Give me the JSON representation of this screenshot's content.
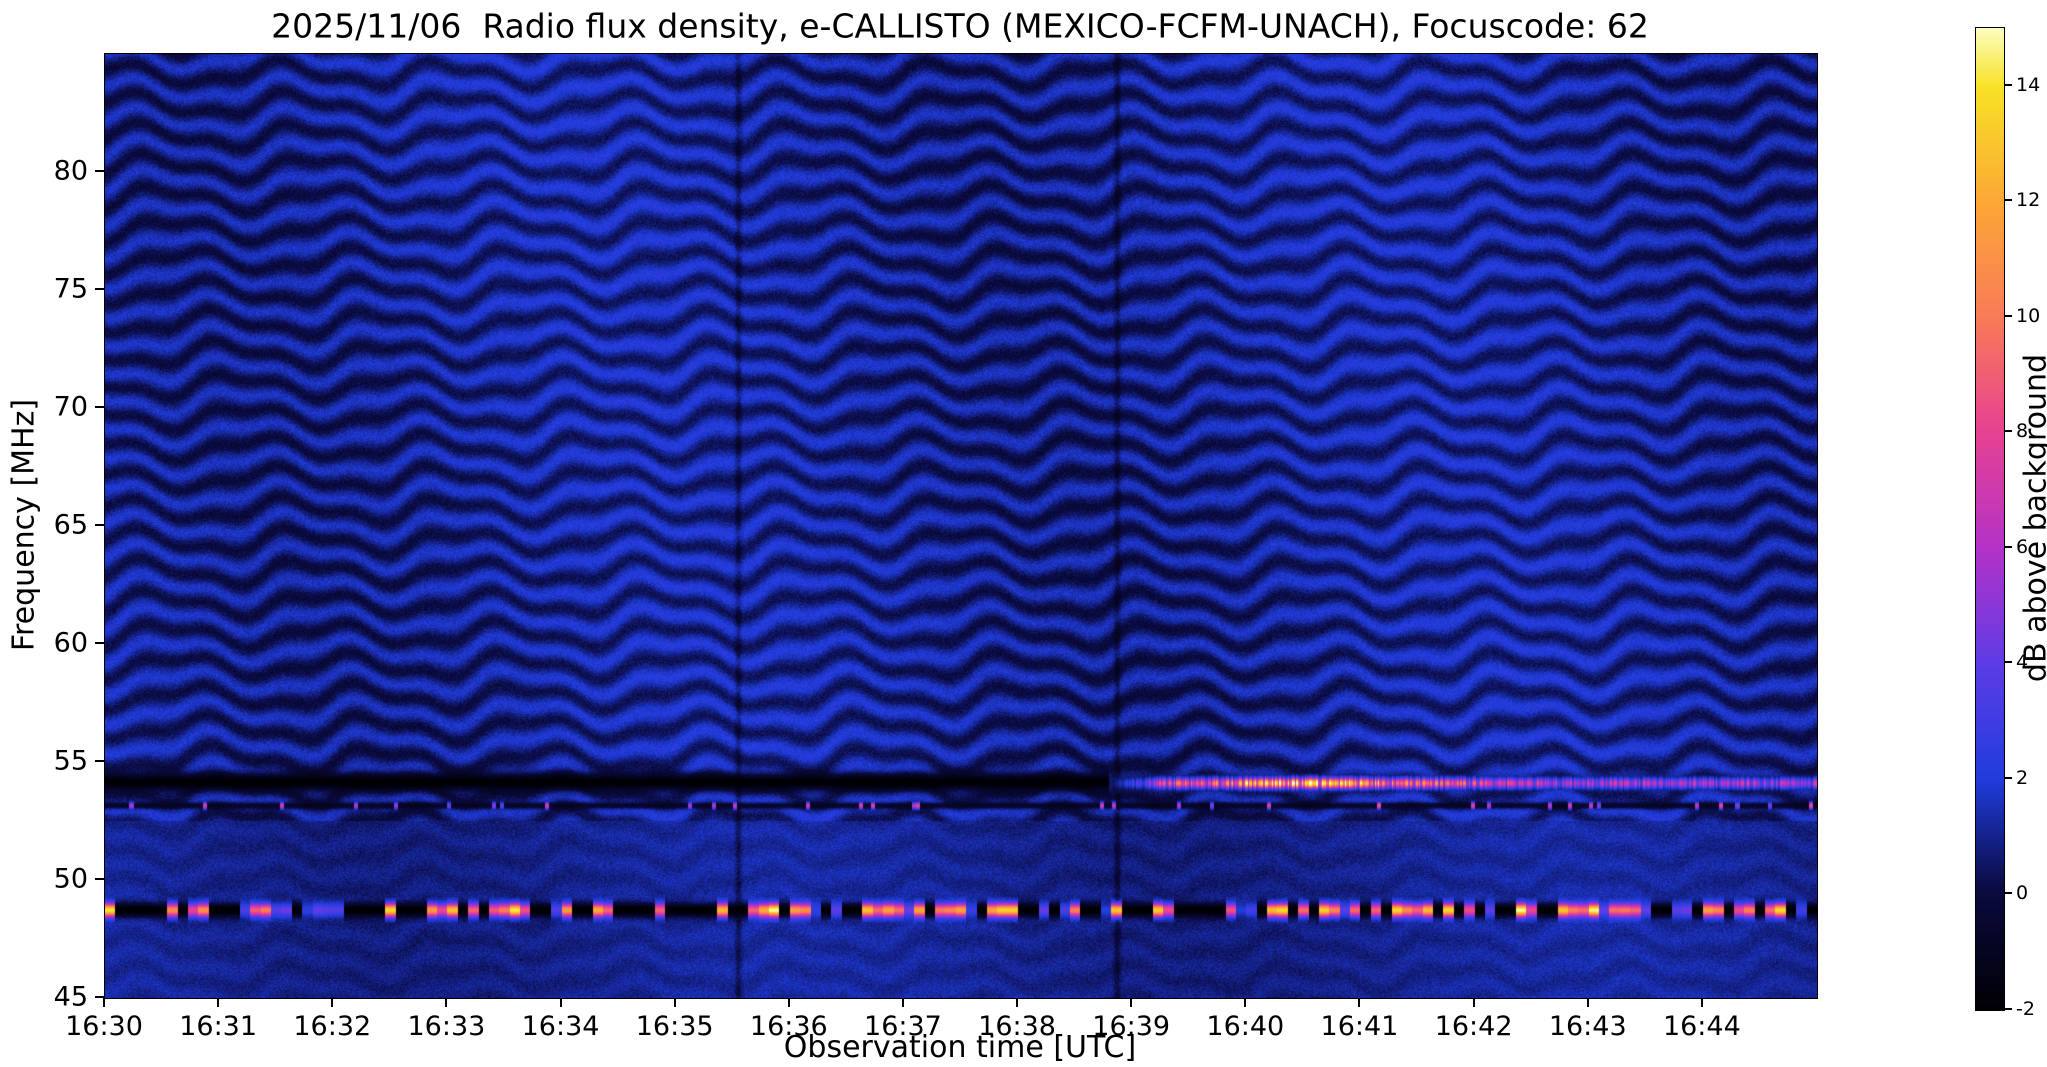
{
  "figure": {
    "background": "#ffffff",
    "text_color": "#000000"
  },
  "chart_data": {
    "type": "heatmap",
    "title": "2025/11/06  Radio flux density, e-CALLISTO (MEXICO-FCFM-UNACH), Focuscode: 62",
    "xlabel": "Observation time [UTC]",
    "ylabel": "Frequency [MHz]",
    "colorbar_label": "dB above background",
    "x_ticks": [
      "16:30",
      "16:31",
      "16:32",
      "16:33",
      "16:34",
      "16:35",
      "16:36",
      "16:37",
      "16:38",
      "16:39",
      "16:40",
      "16:41",
      "16:42",
      "16:43",
      "16:44"
    ],
    "x_range_minutes": [
      0,
      15
    ],
    "y_ticks": [
      45,
      50,
      55,
      60,
      65,
      70,
      75,
      80
    ],
    "y_range_mhz": [
      45,
      85
    ],
    "value_range_db": [
      -2,
      15
    ],
    "colorbar_ticks": [
      14,
      12,
      10,
      8,
      6,
      4,
      2,
      0,
      -2
    ],
    "grid": false,
    "colormap": {
      "name": "black-blue-magenta-orange-yellow",
      "stops": [
        {
          "t": 0.0,
          "rgb": [
            0,
            0,
            4
          ]
        },
        {
          "t": 0.12,
          "rgb": [
            10,
            10,
            62
          ]
        },
        {
          "t": 0.235,
          "rgb": [
            32,
            60,
            220
          ]
        },
        {
          "t": 0.35,
          "rgb": [
            92,
            60,
            230
          ]
        },
        {
          "t": 0.47,
          "rgb": [
            180,
            50,
            200
          ]
        },
        {
          "t": 0.59,
          "rgb": [
            231,
            66,
            145
          ]
        },
        {
          "t": 0.7,
          "rgb": [
            248,
            120,
            90
          ]
        },
        {
          "t": 0.82,
          "rgb": [
            252,
            166,
            54
          ]
        },
        {
          "t": 0.94,
          "rgb": [
            247,
            226,
            37
          ]
        },
        {
          "t": 1.0,
          "rgb": [
            252,
            253,
            191
          ]
        }
      ]
    },
    "features": {
      "background": {
        "mean_db": 1.0,
        "noise_amp_db": 0.95,
        "desc": "dark blue quiet background ~0-2 dB"
      },
      "fringes": {
        "desc": "wavy quasi-horizontal interference ripple bands over whole spectrum",
        "spacing_mhz": 1.32,
        "amp_db": 0.9,
        "min_freq_mhz": 52.5,
        "time_period_min": 1.45
      },
      "dark_channel": {
        "desc": "black absorbed channel before burst",
        "freq_mhz": 54.15,
        "width_mhz": 0.38,
        "level_db": -2.1,
        "end_time_min": 8.8,
        "end_time_label": "~16:39"
      },
      "emission_burst": {
        "desc": "bright intermittent narrowband emission dashes from ~16:39 to end, brightest ~16:40-16:41",
        "freq_mhz": 54.1,
        "width_mhz": 0.22,
        "start_time_min": 8.8,
        "peak_time_min": 10.6,
        "typical_db_range": [
          8,
          15
        ]
      },
      "secondary_line": {
        "desc": "faint dark line with sporadic bright dots",
        "freq_mhz": 53.15,
        "level_db": -1.5
      },
      "rfi_band": {
        "desc": "dashed RFI band across entire record alternating black (~-2 dB) and bright orange/yellow (8-15 dB) segments",
        "freq_mhz": 48.72,
        "width_mhz": 0.28
      },
      "vertical_lines_min": [
        5.55,
        8.87
      ]
    }
  }
}
